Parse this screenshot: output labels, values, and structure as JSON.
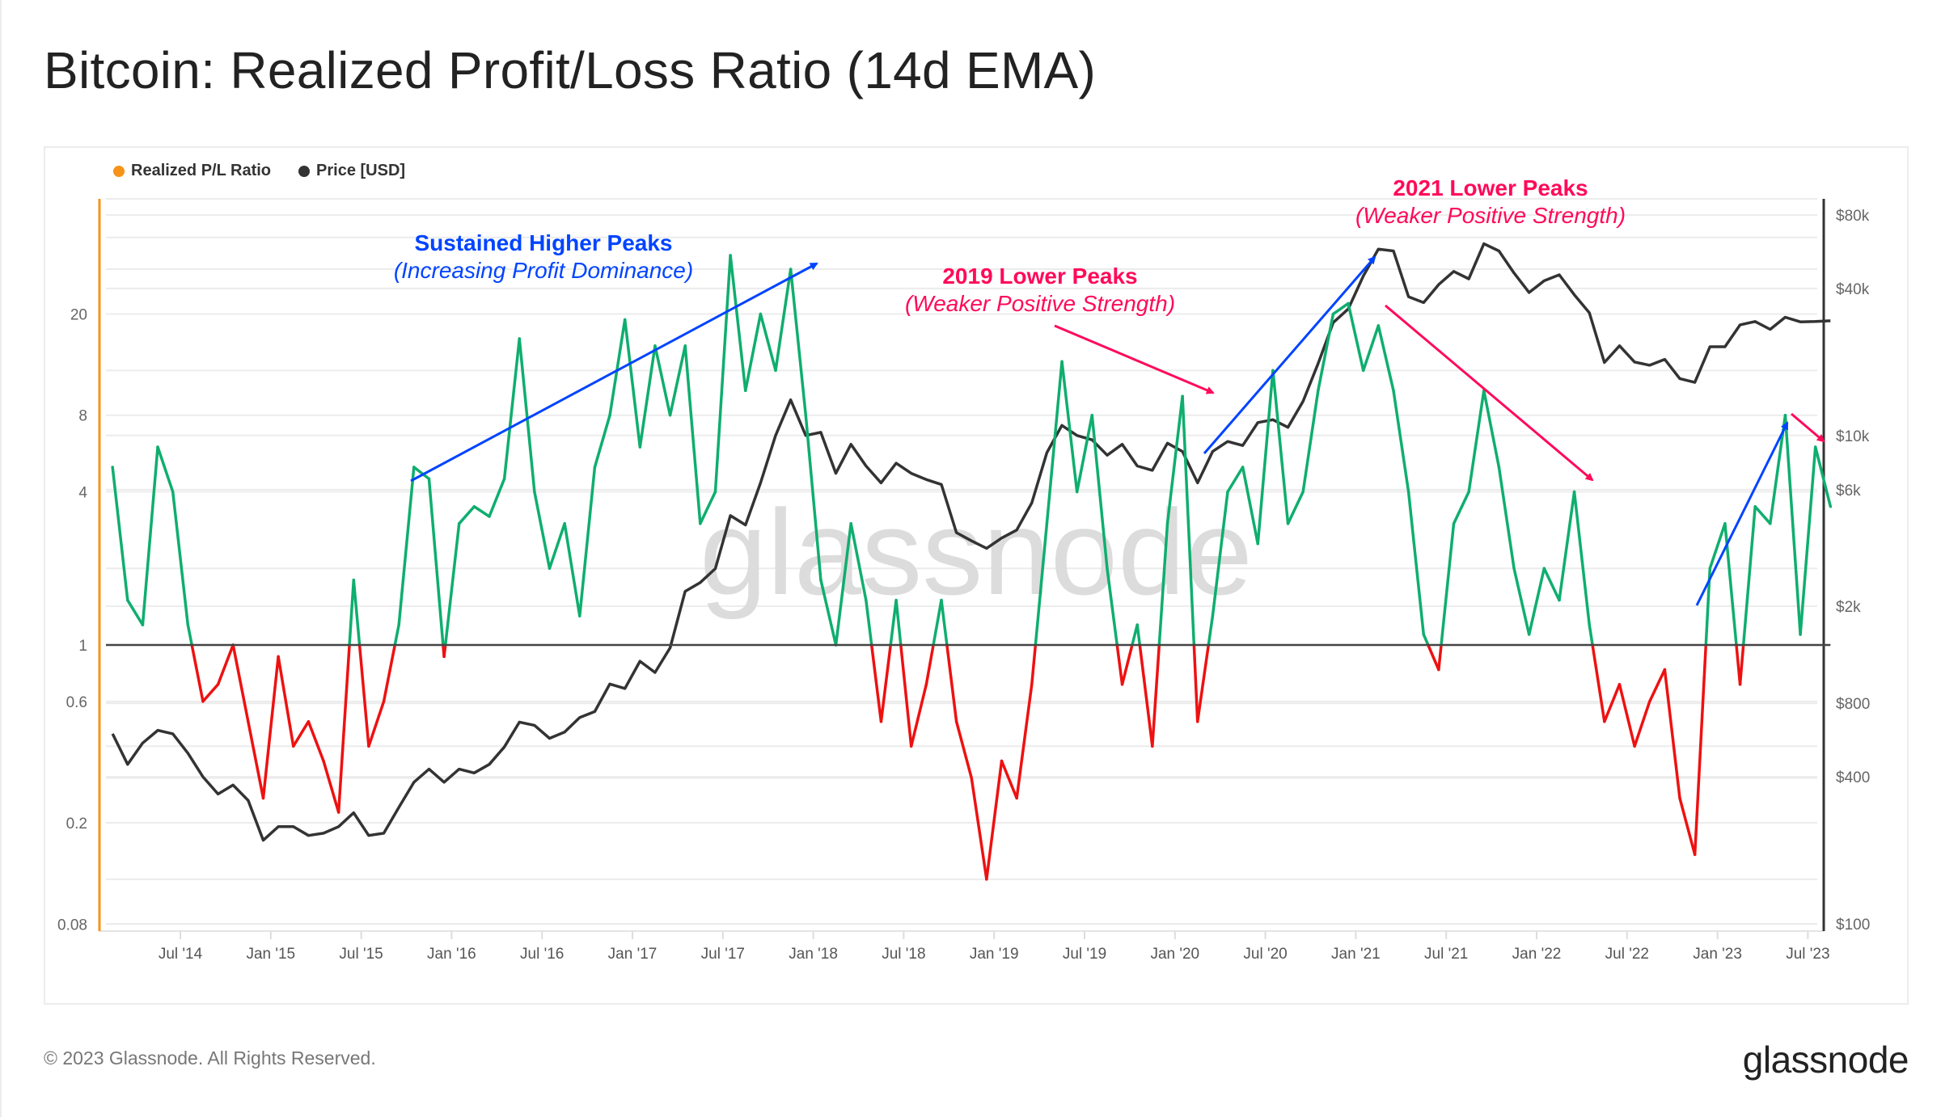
{
  "title": "Bitcoin: Realized Profit/Loss Ratio (14d EMA)",
  "footer": "© 2023 Glassnode. All Rights Reserved.",
  "logo": "glassnode",
  "watermark": "glassnode",
  "colors": {
    "ratio_legend": "#f7931a",
    "price": "#333333",
    "ratio_profit": "#0fae6e",
    "ratio_loss": "#ee1111",
    "annot_blue": "#0044ff",
    "annot_pink": "#ff0a5a",
    "left_axis": "#f7931a"
  },
  "chart_data": {
    "type": "line",
    "title": "Bitcoin: Realized Profit/Loss Ratio (14d EMA)",
    "legend": [
      {
        "name": "Realized P/L Ratio",
        "color": "#f7931a"
      },
      {
        "name": "Price [USD]",
        "color": "#333333"
      }
    ],
    "legend_position": "top-left",
    "y_left": {
      "scale": "log",
      "ticks": [
        20,
        8,
        4,
        1,
        0.6,
        0.2,
        0.08
      ],
      "tick_labels": [
        "20",
        "8",
        "4",
        "1",
        "0.6",
        "0.2",
        "0.08"
      ]
    },
    "y_right": {
      "scale": "log",
      "ticks": [
        80000,
        40000,
        10000,
        6000,
        2000,
        800,
        400,
        100
      ],
      "tick_labels": [
        "$80k",
        "$40k",
        "$10k",
        "$6k",
        "$2k",
        "$800",
        "$400",
        "$100"
      ]
    },
    "x_ticks": [
      {
        "date": "2014-07",
        "label": "Jul '14"
      },
      {
        "date": "2015-01",
        "label": "Jan '15"
      },
      {
        "date": "2015-07",
        "label": "Jul '15"
      },
      {
        "date": "2016-01",
        "label": "Jan '16"
      },
      {
        "date": "2016-07",
        "label": "Jul '16"
      },
      {
        "date": "2017-01",
        "label": "Jan '17"
      },
      {
        "date": "2017-07",
        "label": "Jul '17"
      },
      {
        "date": "2018-01",
        "label": "Jan '18"
      },
      {
        "date": "2018-07",
        "label": "Jul '18"
      },
      {
        "date": "2019-01",
        "label": "Jan '19"
      },
      {
        "date": "2019-07",
        "label": "Jul '19"
      },
      {
        "date": "2020-01",
        "label": "Jan '20"
      },
      {
        "date": "2020-07",
        "label": "Jul '20"
      },
      {
        "date": "2021-01",
        "label": "Jan '21"
      },
      {
        "date": "2021-07",
        "label": "Jul '21"
      },
      {
        "date": "2022-01",
        "label": "Jan '22"
      },
      {
        "date": "2022-07",
        "label": "Jul '22"
      },
      {
        "date": "2023-01",
        "label": "Jan '23"
      },
      {
        "date": "2023-07",
        "label": "Jul '23"
      }
    ],
    "baseline_ratio": 1,
    "grid": true,
    "start_month": "2014-03",
    "series": [
      {
        "name": "Realized P/L Ratio",
        "axis": "left",
        "values": [
          5,
          1.5,
          1.2,
          6,
          4,
          1.2,
          0.6,
          0.7,
          1.0,
          0.5,
          0.25,
          0.9,
          0.4,
          0.5,
          0.35,
          0.22,
          1.8,
          0.4,
          0.6,
          1.2,
          5,
          4.5,
          0.9,
          3,
          3.5,
          3.2,
          4.5,
          16,
          4,
          2,
          3,
          1.3,
          5,
          8,
          19,
          6,
          15,
          8,
          15,
          3,
          4,
          34,
          10,
          20,
          12,
          30,
          8,
          1.8,
          1.0,
          3,
          1.5,
          0.5,
          1.5,
          0.4,
          0.7,
          1.5,
          0.5,
          0.3,
          0.12,
          0.35,
          0.25,
          0.7,
          3,
          13,
          4,
          8,
          2,
          0.7,
          1.2,
          0.4,
          3,
          9.5,
          0.5,
          1.3,
          4,
          5,
          2.5,
          12,
          3,
          4,
          10,
          20,
          22,
          12,
          18,
          10,
          4,
          1.1,
          0.8,
          3,
          4,
          10,
          5,
          2,
          1.1,
          2,
          1.5,
          4,
          1.2,
          0.5,
          0.7,
          0.4,
          0.6,
          0.8,
          0.25,
          0.15,
          2,
          3,
          0.7,
          3.5,
          3,
          8,
          1.1,
          6,
          3.5
        ]
      },
      {
        "name": "Price [USD]",
        "axis": "right",
        "values": [
          600,
          450,
          550,
          620,
          600,
          500,
          400,
          340,
          370,
          320,
          220,
          250,
          250,
          230,
          235,
          250,
          285,
          230,
          235,
          300,
          380,
          430,
          380,
          430,
          415,
          450,
          530,
          670,
          650,
          575,
          610,
          700,
          740,
          960,
          920,
          1190,
          1070,
          1350,
          2300,
          2500,
          2850,
          4700,
          4300,
          6400,
          10000,
          14000,
          10000,
          10300,
          7000,
          9200,
          7500,
          6400,
          7700,
          7000,
          6600,
          6300,
          4000,
          3700,
          3450,
          3800,
          4100,
          5300,
          8500,
          11000,
          10000,
          9600,
          8300,
          9200,
          7500,
          7200,
          9300,
          8600,
          6400,
          8600,
          9450,
          9100,
          11300,
          11600,
          10800,
          13800,
          19700,
          29000,
          33000,
          45000,
          58000,
          57000,
          37000,
          35000,
          41500,
          47000,
          43800,
          61000,
          57000,
          46300,
          38500,
          43000,
          45500,
          37700,
          31800,
          19900,
          23300,
          20000,
          19400,
          20500,
          17100,
          16500,
          23100,
          23100,
          28400,
          29300,
          27200,
          30500,
          29200,
          29300,
          29500
        ]
      }
    ],
    "annotations": [
      {
        "title": "Sustained Higher Peaks",
        "subtitle": "(Increasing Profit Dominance)",
        "color": "#0044ff"
      },
      {
        "title": "2019 Lower Peaks",
        "subtitle": "(Weaker Positive Strength)",
        "color": "#ff0a5a"
      },
      {
        "title": "2021 Lower Peaks",
        "subtitle": "(Weaker Positive Strength)",
        "color": "#ff0a5a"
      }
    ]
  }
}
